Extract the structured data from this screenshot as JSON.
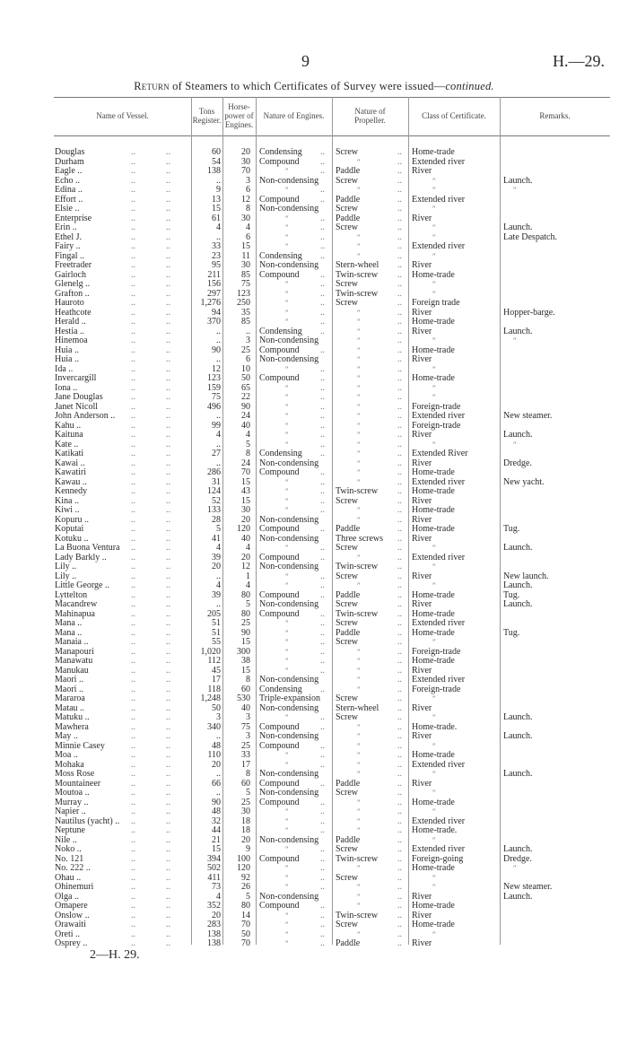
{
  "header": {
    "page_number": "9",
    "doc_ref": "H.—29."
  },
  "title": {
    "prefix": "Return",
    "text": " of Steamers to which Certificates of Survey were issued—",
    "suffix": "continued."
  },
  "columns": [
    "Name of Vessel.",
    "Tons Register.",
    "Horse-power of Engines.",
    "Nature of Engines.",
    "Nature of Propeller.",
    "Class of Certificate.",
    "Remarks."
  ],
  "ditto_mark": "″",
  "rows": [
    [
      "Douglas",
      "60",
      "20",
      "Condensing",
      "Screw",
      "Home-trade",
      ""
    ],
    [
      "Durham",
      "54",
      "30",
      "Compound",
      "″",
      "Extended river",
      ""
    ],
    [
      "Eagle ..",
      "138",
      "70",
      "″",
      "Paddle",
      "River",
      ""
    ],
    [
      "Echo ..",
      "..",
      "3",
      "Non-condensing",
      "Screw",
      "″",
      "Launch."
    ],
    [
      "Edina ..",
      "9",
      "6",
      "″",
      "″",
      "″",
      "″"
    ],
    [
      "Effort ..",
      "13",
      "12",
      "Compound",
      "Paddle",
      "Extended river",
      ""
    ],
    [
      "Elsie ..",
      "15",
      "8",
      "Non-condensing",
      "Screw",
      "″",
      ""
    ],
    [
      "Enterprise",
      "61",
      "30",
      "″",
      "Paddle",
      "River",
      ""
    ],
    [
      "Erin ..",
      "4",
      "4",
      "″",
      "Screw",
      "″",
      "Launch."
    ],
    [
      "Ethel J.",
      "..",
      "6",
      "″",
      "″",
      "″",
      "Late Despatch."
    ],
    [
      "Fairy ..",
      "33",
      "15",
      "″",
      "″",
      "Extended river",
      ""
    ],
    [
      "Fingal ..",
      "23",
      "11",
      "Condensing",
      "″",
      "″",
      ""
    ],
    [
      "Freetrader",
      "95",
      "30",
      "Non-condensing",
      "Stern-wheel",
      "River",
      ""
    ],
    [
      "Gairloch",
      "211",
      "85",
      "Compound",
      "Twin-screw",
      "Home-trade",
      ""
    ],
    [
      "Glenelg ..",
      "156",
      "75",
      "″",
      "Screw",
      "″",
      ""
    ],
    [
      "Grafton ..",
      "297",
      "123",
      "″",
      "Twin-screw",
      "″",
      ""
    ],
    [
      "Hauroto",
      "1,276",
      "250",
      "″",
      "Screw",
      "Foreign trade",
      ""
    ],
    [
      "Heathcote",
      "94",
      "35",
      "″",
      "″",
      "River",
      "Hopper-barge."
    ],
    [
      "Herald ..",
      "370",
      "85",
      "″",
      "″",
      "Home-trade",
      ""
    ],
    [
      "Hestia ..",
      "..",
      "..",
      "Condensing",
      "″",
      "River",
      "Launch."
    ],
    [
      "Hinemoa",
      "..",
      "3",
      "Non-condensing",
      "″",
      "″",
      "″"
    ],
    [
      "Huia ..",
      "90",
      "25",
      "Compound",
      "″",
      "Home-trade",
      ""
    ],
    [
      "Huia ..",
      "..",
      "6",
      "Non-condensing",
      "″",
      "River",
      ""
    ],
    [
      "Ida ..",
      "12",
      "10",
      "″",
      "″",
      "″",
      ""
    ],
    [
      "Invercargill",
      "123",
      "50",
      "Compound",
      "″",
      "Home-trade",
      ""
    ],
    [
      "Iona ..",
      "159",
      "65",
      "″",
      "″",
      "″",
      ""
    ],
    [
      "Jane Douglas",
      "75",
      "22",
      "″",
      "″",
      "″",
      ""
    ],
    [
      "Janet Nicoll",
      "496",
      "90",
      "″",
      "″",
      "Foreign-trade",
      ""
    ],
    [
      "John Anderson ..",
      "..",
      "24",
      "″",
      "″",
      "Extended river",
      "New steamer."
    ],
    [
      "Kahu ..",
      "99",
      "40",
      "″",
      "″",
      "Foreign-trade",
      ""
    ],
    [
      "Kaituna",
      "4",
      "4",
      "″",
      "″",
      "River",
      "Launch."
    ],
    [
      "Kate ..",
      "..",
      "5",
      "″",
      "″",
      "″",
      "″"
    ],
    [
      "Katikati",
      "27",
      "8",
      "Condensing",
      "″",
      "Extended River",
      ""
    ],
    [
      "Kawai ..",
      "..",
      "24",
      "Non-condensing",
      "″",
      "River",
      "Dredge."
    ],
    [
      "Kawatiri",
      "286",
      "70",
      "Compound",
      "″",
      "Home-trade",
      ""
    ],
    [
      "Kawau ..",
      "31",
      "15",
      "″",
      "″",
      "Extended river",
      "New yacht."
    ],
    [
      "Kennedy",
      "124",
      "43",
      "″",
      "Twin-screw",
      "Home-trade",
      ""
    ],
    [
      "Kina ..",
      "52",
      "15",
      "″",
      "Screw",
      "River",
      ""
    ],
    [
      "Kiwi ..",
      "133",
      "30",
      "″",
      "″",
      "Home-trade",
      ""
    ],
    [
      "Kopuru ..",
      "28",
      "20",
      "Non-condensing",
      "″",
      "River",
      ""
    ],
    [
      "Koputai",
      "5",
      "120",
      "Compound",
      "Paddle",
      "Home-trade",
      "Tug."
    ],
    [
      "Kotuku ..",
      "41",
      "40",
      "Non-condensing",
      "Three screws",
      "River",
      ""
    ],
    [
      "La Buona Ventura",
      "4",
      "4",
      "″",
      "Screw",
      "″",
      "Launch."
    ],
    [
      "Lady Barkly ..",
      "39",
      "20",
      "Compound",
      "″",
      "Extended river",
      ""
    ],
    [
      "Lily ..",
      "20",
      "12",
      "Non-condensing",
      "Twin-screw",
      "″",
      ""
    ],
    [
      "Lily ..",
      "..",
      "1",
      "″",
      "Screw",
      "River",
      "New launch."
    ],
    [
      "Little George ..",
      "4",
      "4",
      "″",
      "″",
      "″",
      "Launch."
    ],
    [
      "Lyttelton",
      "39",
      "80",
      "Compound",
      "Paddle",
      "Home-trade",
      "Tug."
    ],
    [
      "Macandrew",
      "..",
      "5",
      "Non-condensing",
      "Screw",
      "River",
      "Launch."
    ],
    [
      "Mahinapua",
      "205",
      "80",
      "Compound",
      "Twin-screw",
      "Home-trade",
      ""
    ],
    [
      "Mana ..",
      "51",
      "25",
      "″",
      "Screw",
      "Extended river",
      ""
    ],
    [
      "Mana ..",
      "51",
      "90",
      "″",
      "Paddle",
      "Home-trade",
      "Tug."
    ],
    [
      "Manaia ..",
      "55",
      "15",
      "″",
      "Screw",
      "″",
      ""
    ],
    [
      "Manapouri",
      "1,020",
      "300",
      "″",
      "″",
      "Foreign-trade",
      ""
    ],
    [
      "Manawatu",
      "112",
      "38",
      "″",
      "″",
      "Home-trade",
      ""
    ],
    [
      "Manukau",
      "45",
      "15",
      "″",
      "″",
      "River",
      ""
    ],
    [
      "Maori ..",
      "17",
      "8",
      "Non-condensing",
      "″",
      "Extended river",
      ""
    ],
    [
      "Maori ..",
      "118",
      "60",
      "Condensing",
      "″",
      "Foreign-trade",
      ""
    ],
    [
      "Mararoa",
      "1,248",
      "530",
      "Triple-expansion",
      "Screw",
      "″",
      ""
    ],
    [
      "Matau ..",
      "50",
      "40",
      "Non-condensing",
      "Stern-wheel",
      "River",
      ""
    ],
    [
      "Matuku ..",
      "3",
      "3",
      "″",
      "Screw",
      "″",
      "Launch."
    ],
    [
      "Mawhera",
      "340",
      "75",
      "Compound",
      "″",
      "Home-trade.",
      ""
    ],
    [
      "May ..",
      "..",
      "3",
      "Non-condensing",
      "″",
      "River",
      "Launch."
    ],
    [
      "Minnie Casey",
      "48",
      "25",
      "Compound",
      "″",
      "″",
      ""
    ],
    [
      "Moa ..",
      "110",
      "33",
      "″",
      "″",
      "Home-trade",
      ""
    ],
    [
      "Mohaka",
      "20",
      "17",
      "″",
      "″",
      "Extended river",
      ""
    ],
    [
      "Moss Rose",
      "..",
      "8",
      "Non-condensing",
      "″",
      "″",
      "Launch."
    ],
    [
      "Mountaineer",
      "66",
      "60",
      "Compound",
      "Paddle",
      "River",
      ""
    ],
    [
      "Moutoa ..",
      "..",
      "5",
      "Non-condensing",
      "Screw",
      "″",
      ""
    ],
    [
      "Murray ..",
      "90",
      "25",
      "Compound",
      "″",
      "Home-trade",
      ""
    ],
    [
      "Napier ..",
      "48",
      "30",
      "″",
      "″",
      "″",
      ""
    ],
    [
      "Nautilus (yacht) ..",
      "32",
      "18",
      "″",
      "″",
      "Extended river",
      ""
    ],
    [
      "Neptune",
      "44",
      "18",
      "″",
      "″",
      "Home-trade.",
      ""
    ],
    [
      "Nile ..",
      "21",
      "20",
      "Non-condensing",
      "Paddle",
      "″",
      ""
    ],
    [
      "Noko ..",
      "15",
      "9",
      "″",
      "Screw",
      "Extended river",
      "Launch."
    ],
    [
      "No. 121",
      "394",
      "100",
      "Compound",
      "Twin-screw",
      "Foreign-going",
      "Dredge."
    ],
    [
      "No. 222 ..",
      "502",
      "120",
      "″",
      "″",
      "Home-trade",
      "″"
    ],
    [
      "Ohau ..",
      "411",
      "92",
      "″",
      "Screw",
      "″",
      ""
    ],
    [
      "Ohinemuri",
      "73",
      "26",
      "″",
      "″",
      "″",
      "New steamer."
    ],
    [
      "Olga ..",
      "4",
      "5",
      "Non-condensing",
      "″",
      "River",
      "Launch."
    ],
    [
      "Omapere",
      "352",
      "80",
      "Compound",
      "″",
      "Home-trade",
      ""
    ],
    [
      "Onslow ..",
      "20",
      "14",
      "″",
      "Twin-screw",
      "River",
      ""
    ],
    [
      "Orawaiti",
      "283",
      "70",
      "″",
      "Screw",
      "Home-trade",
      ""
    ],
    [
      "Oreti ..",
      "138",
      "50",
      "″",
      "″",
      "″",
      ""
    ],
    [
      "Osprey ..",
      "138",
      "70",
      "″",
      "Paddle",
      "River",
      ""
    ]
  ],
  "footer": {
    "signature": "2—H. 29."
  }
}
